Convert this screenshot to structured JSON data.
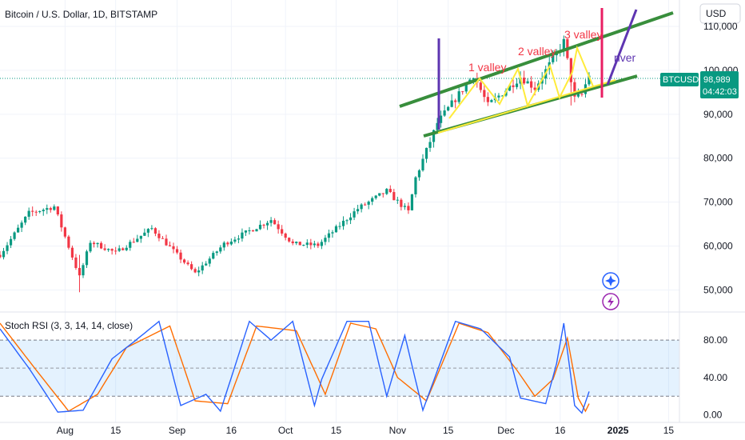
{
  "header": {
    "title": "Bitcoin / U.S. Dollar, 1D, BITSTAMP"
  },
  "price_axis": {
    "currency": "USD",
    "tick_labels": [
      "110,000",
      "100,000",
      "90,000",
      "80,000",
      "70,000",
      "60,000",
      "50,000"
    ]
  },
  "price_tag": {
    "symbol": "BTCUSD",
    "price": "98,989",
    "countdown": "04:42:03"
  },
  "oscillator": {
    "title": "Stoch RSI (3, 3, 14, 14, close)",
    "tick_labels": [
      "80.00",
      "40.00",
      "0.00"
    ]
  },
  "time_axis": {
    "tick_labels": [
      "Aug",
      "15",
      "Sep",
      "16",
      "Oct",
      "15",
      "Nov",
      "15",
      "Dec",
      "16",
      "2025",
      "15"
    ]
  },
  "annotations": {
    "valley1": "1 valley",
    "valley2": "2 valley",
    "valley3": "3 valley",
    "river": "river"
  },
  "colors": {
    "up": "#089981",
    "down": "#f23645",
    "k_line": "#2962ff",
    "d_line": "#ff6d00",
    "channel": "#388e3c",
    "yellow": "#ffeb3b",
    "purple": "#5e35b1",
    "red_mark": "#e91e63"
  },
  "chart_data": [
    {
      "type": "candlestick",
      "title": "Bitcoin / U.S. Dollar, 1D, BITSTAMP",
      "ylim": [
        45000,
        116000
      ],
      "x_range": [
        "2024-07-14",
        "2025-01-18"
      ],
      "anchors": [
        [
          "2024-07-14",
          58000
        ],
        [
          "2024-07-22",
          67500
        ],
        [
          "2024-07-29",
          69000
        ],
        [
          "2024-08-05",
          53000
        ],
        [
          "2024-08-08",
          61000
        ],
        [
          "2024-08-15",
          58500
        ],
        [
          "2024-08-25",
          64000
        ],
        [
          "2024-09-06",
          53800
        ],
        [
          "2024-09-14",
          60500
        ],
        [
          "2024-09-27",
          66000
        ],
        [
          "2024-10-03",
          60500
        ],
        [
          "2024-10-10",
          60200
        ],
        [
          "2024-10-21",
          68500
        ],
        [
          "2024-10-29",
          72500
        ],
        [
          "2024-11-04",
          67800
        ],
        [
          "2024-11-06",
          75500
        ],
        [
          "2024-11-12",
          88000
        ],
        [
          "2024-11-22",
          99000
        ],
        [
          "2024-11-26",
          92000
        ],
        [
          "2024-12-05",
          98500
        ],
        [
          "2024-12-09",
          96000
        ],
        [
          "2024-12-17",
          106500
        ],
        [
          "2024-12-20",
          93500
        ],
        [
          "2024-12-22",
          94500
        ],
        [
          "2024-12-24",
          98989
        ]
      ],
      "series": [
        {
          "name": "BTCUSD",
          "last": 98989
        }
      ]
    },
    {
      "type": "line",
      "title": "Stoch RSI (3, 3, 14, 14, close)",
      "ylim": [
        -8,
        110
      ],
      "bands": [
        20,
        50,
        80
      ],
      "anchors_k": [
        [
          "2024-07-14",
          92
        ],
        [
          "2024-07-22",
          50
        ],
        [
          "2024-07-30",
          3
        ],
        [
          "2024-08-06",
          5
        ],
        [
          "2024-08-14",
          60
        ],
        [
          "2024-08-20",
          78
        ],
        [
          "2024-08-27",
          100
        ],
        [
          "2024-09-02",
          10
        ],
        [
          "2024-09-09",
          22
        ],
        [
          "2024-09-13",
          4
        ],
        [
          "2024-09-21",
          100
        ],
        [
          "2024-09-27",
          80
        ],
        [
          "2024-10-03",
          100
        ],
        [
          "2024-10-09",
          10
        ],
        [
          "2024-10-11",
          38
        ],
        [
          "2024-10-18",
          100
        ],
        [
          "2024-10-24",
          100
        ],
        [
          "2024-10-29",
          20
        ],
        [
          "2024-11-03",
          85
        ],
        [
          "2024-11-08",
          5
        ],
        [
          "2024-11-17",
          100
        ],
        [
          "2024-11-24",
          92
        ],
        [
          "2024-12-02",
          62
        ],
        [
          "2024-12-05",
          18
        ],
        [
          "2024-12-12",
          12
        ],
        [
          "2024-12-15",
          55
        ],
        [
          "2024-12-17",
          98
        ],
        [
          "2024-12-20",
          10
        ],
        [
          "2024-12-22",
          2
        ],
        [
          "2024-12-24",
          25
        ]
      ],
      "anchors_d": [
        [
          "2024-07-14",
          98
        ],
        [
          "2024-07-24",
          48
        ],
        [
          "2024-08-02",
          4
        ],
        [
          "2024-08-10",
          22
        ],
        [
          "2024-08-18",
          72
        ],
        [
          "2024-08-30",
          95
        ],
        [
          "2024-09-06",
          15
        ],
        [
          "2024-09-15",
          12
        ],
        [
          "2024-09-23",
          95
        ],
        [
          "2024-10-04",
          90
        ],
        [
          "2024-10-12",
          22
        ],
        [
          "2024-10-19",
          98
        ],
        [
          "2024-10-26",
          92
        ],
        [
          "2024-11-01",
          40
        ],
        [
          "2024-11-09",
          15
        ],
        [
          "2024-11-18",
          98
        ],
        [
          "2024-11-26",
          88
        ],
        [
          "2024-12-04",
          48
        ],
        [
          "2024-12-09",
          20
        ],
        [
          "2024-12-14",
          38
        ],
        [
          "2024-12-18",
          82
        ],
        [
          "2024-12-21",
          18
        ],
        [
          "2024-12-23",
          4
        ],
        [
          "2024-12-24",
          12
        ]
      ]
    }
  ]
}
